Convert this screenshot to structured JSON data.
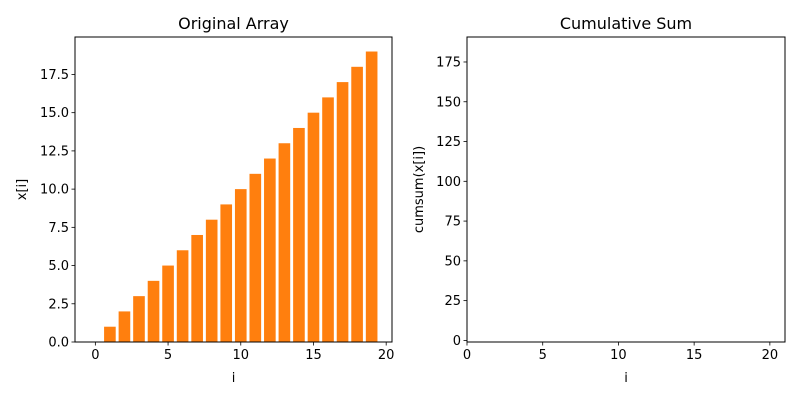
{
  "chart_data": [
    {
      "type": "bar",
      "title": "Original Array",
      "xlabel": "i",
      "ylabel": "x[i]",
      "x": [
        0,
        1,
        2,
        3,
        4,
        5,
        6,
        7,
        8,
        9,
        10,
        11,
        12,
        13,
        14,
        15,
        16,
        17,
        18,
        19
      ],
      "values": [
        0,
        1,
        2,
        3,
        4,
        5,
        6,
        7,
        8,
        9,
        10,
        11,
        12,
        13,
        14,
        15,
        16,
        17,
        18,
        19
      ],
      "xlim": [
        -1.4,
        20.4
      ],
      "ylim": [
        0,
        19.95
      ],
      "xticks": [
        0,
        5,
        10,
        15,
        20
      ],
      "xtick_labels": [
        "0",
        "5",
        "10",
        "15",
        "20"
      ],
      "yticks": [
        0,
        2.5,
        5,
        7.5,
        10,
        12.5,
        15,
        17.5
      ],
      "ytick_labels": [
        "0.0",
        "2.5",
        "5.0",
        "7.5",
        "10.0",
        "12.5",
        "15.0",
        "17.5"
      ],
      "color": "#ff7f0e",
      "grid": false
    },
    {
      "type": "line",
      "title": "Cumulative Sum",
      "xlabel": "i",
      "ylabel": "cumsum(x[i])",
      "series": [],
      "xlim": [
        0,
        21
      ],
      "ylim": [
        -1,
        190.7
      ],
      "xticks": [
        0,
        5,
        10,
        15,
        20
      ],
      "xtick_labels": [
        "0",
        "5",
        "10",
        "15",
        "20"
      ],
      "yticks": [
        0,
        25,
        50,
        75,
        100,
        125,
        150,
        175
      ],
      "ytick_labels": [
        "0",
        "25",
        "50",
        "75",
        "100",
        "125",
        "150",
        "175"
      ],
      "grid": false
    }
  ]
}
